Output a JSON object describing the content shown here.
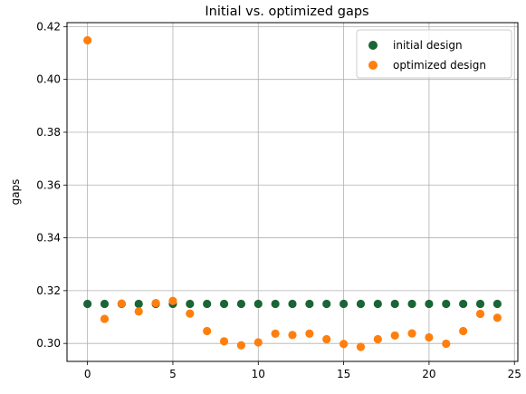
{
  "chart_data": {
    "type": "scatter",
    "title": "Initial vs. optimized gaps",
    "xlabel": "",
    "ylabel": "gaps",
    "xlim": [
      -1.2,
      25.2
    ],
    "ylim": [
      0.2932,
      0.4215
    ],
    "x_ticks": [
      0,
      5,
      10,
      15,
      20,
      25
    ],
    "y_ticks": [
      0.3,
      0.32,
      0.34,
      0.36,
      0.38,
      0.4,
      0.42
    ],
    "y_tick_labels": [
      "0.30",
      "0.32",
      "0.34",
      "0.36",
      "0.38",
      "0.40",
      "0.42"
    ],
    "grid": true,
    "legend_position": "top-right",
    "x": [
      0,
      1,
      2,
      3,
      4,
      5,
      6,
      7,
      8,
      9,
      10,
      11,
      12,
      13,
      14,
      15,
      16,
      17,
      18,
      19,
      20,
      21,
      22,
      23,
      24
    ],
    "series": [
      {
        "name": "initial design",
        "color": "#1a6535",
        "values": [
          0.315,
          0.315,
          0.315,
          0.315,
          0.315,
          0.315,
          0.315,
          0.315,
          0.315,
          0.315,
          0.315,
          0.315,
          0.315,
          0.315,
          0.315,
          0.315,
          0.315,
          0.315,
          0.315,
          0.315,
          0.315,
          0.315,
          0.315,
          0.315,
          0.315
        ]
      },
      {
        "name": "optimized design",
        "color": "#ff7f0e",
        "values": [
          0.4148,
          0.3093,
          0.3151,
          0.3121,
          0.3153,
          0.3161,
          0.3113,
          0.3047,
          0.3008,
          0.2993,
          0.3004,
          0.3037,
          0.3032,
          0.3037,
          0.3016,
          0.2998,
          0.2987,
          0.3016,
          0.303,
          0.3038,
          0.3023,
          0.2999,
          0.3047,
          0.3112,
          0.3097
        ]
      }
    ]
  }
}
